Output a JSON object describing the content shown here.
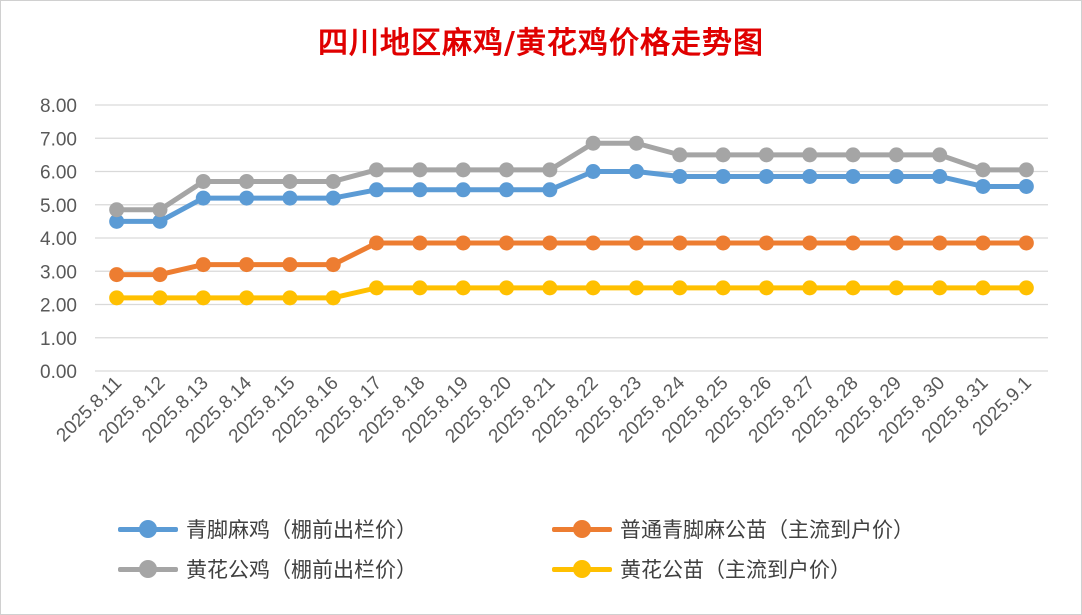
{
  "chart_data": {
    "type": "line",
    "title": "四川地区麻鸡/黄花鸡价格走势图",
    "categories": [
      "2025.8.11",
      "2025.8.12",
      "2025.8.13",
      "2025.8.14",
      "2025.8.15",
      "2025.8.16",
      "2025.8.17",
      "2025.8.18",
      "2025.8.19",
      "2025.8.20",
      "2025.8.21",
      "2025.8.22",
      "2025.8.23",
      "2025.8.24",
      "2025.8.25",
      "2025.8.26",
      "2025.8.27",
      "2025.8.28",
      "2025.8.29",
      "2025.8.30",
      "2025.8.31",
      "2025.9.1"
    ],
    "yticks": [
      "0.00",
      "1.00",
      "2.00",
      "3.00",
      "4.00",
      "5.00",
      "6.00",
      "7.00",
      "8.00"
    ],
    "ylim": [
      0,
      8
    ],
    "grid": true,
    "legend_position": "bottom",
    "series": [
      {
        "name": "青脚麻鸡（棚前出栏价）",
        "color": "#5b9bd5",
        "values": [
          4.5,
          4.5,
          5.2,
          5.2,
          5.2,
          5.2,
          5.45,
          5.45,
          5.45,
          5.45,
          5.45,
          6.0,
          6.0,
          5.85,
          5.85,
          5.85,
          5.85,
          5.85,
          5.85,
          5.85,
          5.55,
          5.55
        ]
      },
      {
        "name": "普通青脚麻公苗（主流到户价）",
        "color": "#ed7d31",
        "values": [
          2.9,
          2.9,
          3.2,
          3.2,
          3.2,
          3.2,
          3.85,
          3.85,
          3.85,
          3.85,
          3.85,
          3.85,
          3.85,
          3.85,
          3.85,
          3.85,
          3.85,
          3.85,
          3.85,
          3.85,
          3.85,
          3.85
        ]
      },
      {
        "name": "黄花公鸡（棚前出栏价）",
        "color": "#a5a5a5",
        "values": [
          4.85,
          4.85,
          5.7,
          5.7,
          5.7,
          5.7,
          6.05,
          6.05,
          6.05,
          6.05,
          6.05,
          6.85,
          6.85,
          6.5,
          6.5,
          6.5,
          6.5,
          6.5,
          6.5,
          6.5,
          6.05,
          6.05
        ]
      },
      {
        "name": "黄花公苗（主流到户价）",
        "color": "#ffc000",
        "values": [
          2.2,
          2.2,
          2.2,
          2.2,
          2.2,
          2.2,
          2.5,
          2.5,
          2.5,
          2.5,
          2.5,
          2.5,
          2.5,
          2.5,
          2.5,
          2.5,
          2.5,
          2.5,
          2.5,
          2.5,
          2.5,
          2.5
        ]
      }
    ]
  }
}
